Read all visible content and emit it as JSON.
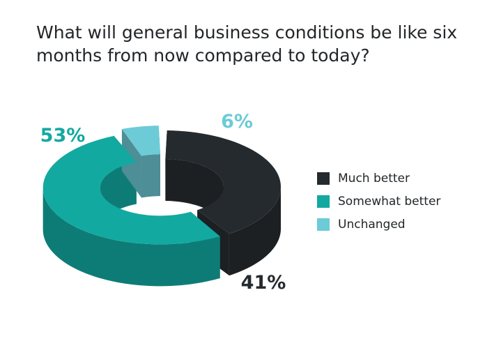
{
  "title": "What will general business conditions be like six\nmonths from now compared to today?",
  "chart_data": {
    "type": "pie",
    "style": "3d-donut",
    "categories": [
      "Much better",
      "Somewhat better",
      "Unchanged"
    ],
    "values": [
      41,
      53,
      6
    ],
    "value_labels": [
      "41%",
      "53%",
      "6%"
    ],
    "colors": [
      "#252a2e",
      "#12a9a1",
      "#6ccbd6"
    ],
    "side_colors": [
      "#1c2023",
      "#0e7c76",
      "#4e8e96"
    ],
    "label_colors": [
      "#252a2e",
      "#12a9a1",
      "#6ccbd6"
    ],
    "legend_position": "right"
  }
}
